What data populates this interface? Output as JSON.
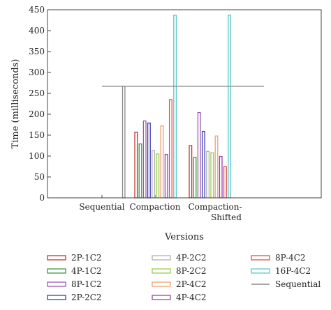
{
  "chart_data": {
    "type": "bar",
    "xlabel": "Versions",
    "ylabel": "Time (milliseconds)",
    "ylim": [
      0,
      450
    ],
    "yticks": [
      0,
      50,
      100,
      150,
      200,
      250,
      300,
      350,
      400,
      450
    ],
    "categories": [
      "Sequential",
      "Compaction",
      "Compaction-Shifted"
    ],
    "grid": false,
    "legend_position": "bottom",
    "series": [
      {
        "name": "2P-1C2",
        "color": "#c0392b",
        "values": [
          null,
          157,
          125
        ]
      },
      {
        "name": "4P-1C2",
        "color": "#3a9a3a",
        "values": [
          null,
          129,
          97
        ]
      },
      {
        "name": "8P-1C2",
        "color": "#9b59b6",
        "values": [
          null,
          184,
          204
        ]
      },
      {
        "name": "2P-2C2",
        "color": "#3b3bb3",
        "values": [
          null,
          179,
          159
        ]
      },
      {
        "name": "4P-2C2",
        "color": "#b0b0b0",
        "values": [
          null,
          113,
          111
        ]
      },
      {
        "name": "8P-2C2",
        "color": "#9ccc4a",
        "values": [
          null,
          105,
          108
        ]
      },
      {
        "name": "2P-4C2",
        "color": "#f0a070",
        "values": [
          null,
          172,
          148
        ]
      },
      {
        "name": "4P-4C2",
        "color": "#9b3fb5",
        "values": [
          null,
          104,
          99
        ]
      },
      {
        "name": "8P-4C2",
        "color": "#d9534f",
        "values": [
          null,
          235,
          75
        ]
      },
      {
        "name": "16P-4C2",
        "color": "#5bc8c8",
        "values": [
          null,
          437,
          437
        ]
      }
    ],
    "sequential": {
      "name": "Sequential",
      "color": "#8a8a8a",
      "value": 267
    }
  }
}
